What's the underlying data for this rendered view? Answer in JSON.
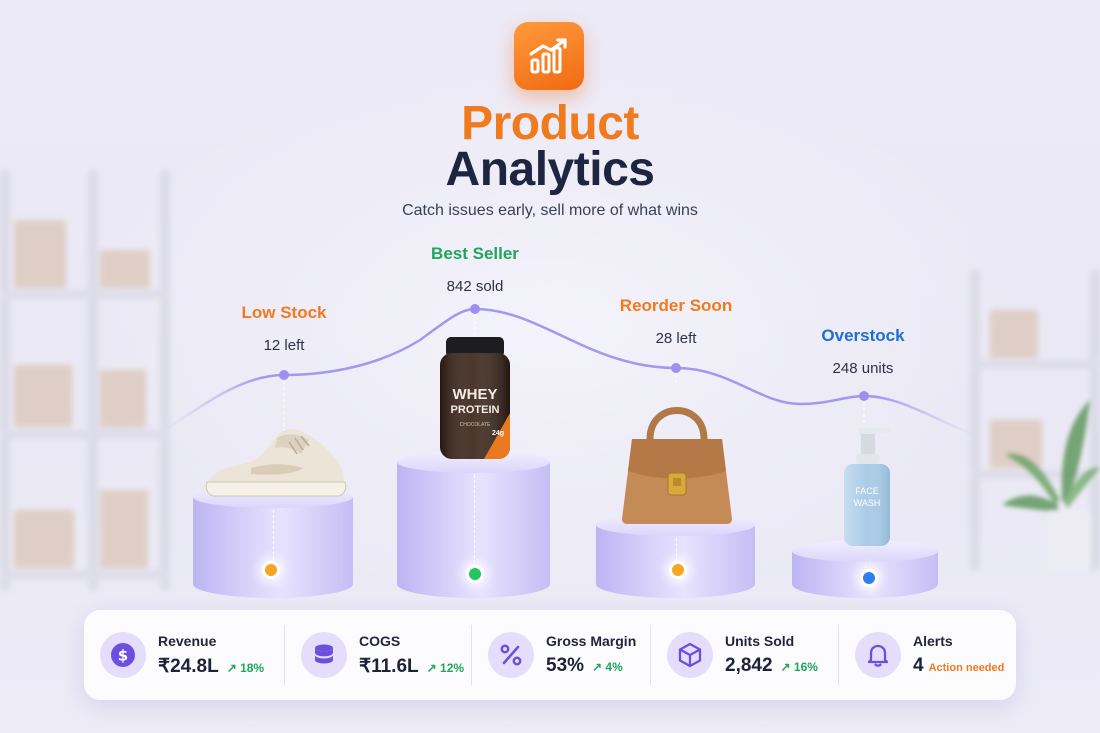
{
  "header": {
    "title_line1": "Product",
    "title_line2": "Analytics",
    "subtitle": "Catch issues early, sell more of what wins"
  },
  "products": [
    {
      "status": "Low Stock",
      "value": "12 left",
      "status_color": "#f07a1e",
      "dot_color": "#f5a623",
      "item": "sneaker"
    },
    {
      "status": "Best Seller",
      "value": "842 sold",
      "status_color": "#1fa65a",
      "dot_color": "#22c55e",
      "item": "protein-jar"
    },
    {
      "status": "Reorder Soon",
      "value": "28 left",
      "status_color": "#f07a1e",
      "dot_color": "#f5a623",
      "item": "handbag"
    },
    {
      "status": "Overstock",
      "value": "248 units",
      "status_color": "#1f6fd1",
      "dot_color": "#2f80ed",
      "item": "face-wash-bottle"
    }
  ],
  "jar_label": {
    "line1": "WHEY",
    "line2": "PROTEIN",
    "flavor": "CHOCOLATE",
    "badge": "24g"
  },
  "bottle_label": {
    "line1": "FACE",
    "line2": "WASH"
  },
  "stats": [
    {
      "label": "Revenue",
      "value": "₹24.8L",
      "delta": "↗ 18%",
      "note": "",
      "icon": "dollar-icon"
    },
    {
      "label": "COGS",
      "value": "₹11.6L",
      "delta": "↗ 12%",
      "note": "",
      "icon": "coins-icon"
    },
    {
      "label": "Gross Margin",
      "value": "53%",
      "delta": "↗ 4%",
      "note": "",
      "icon": "percent-icon"
    },
    {
      "label": "Units Sold",
      "value": "2,842",
      "delta": "↗ 16%",
      "note": "",
      "icon": "box-icon"
    },
    {
      "label": "Alerts",
      "value": "4",
      "delta": "",
      "note": "Action needed",
      "icon": "bell-icon"
    }
  ],
  "colors": {
    "accent_orange": "#f07a1e",
    "navy": "#1e2540",
    "green": "#1fa65a",
    "blue": "#1f6fd1",
    "lavender": "#e4defc",
    "icon_purple": "#6d4fe0"
  }
}
